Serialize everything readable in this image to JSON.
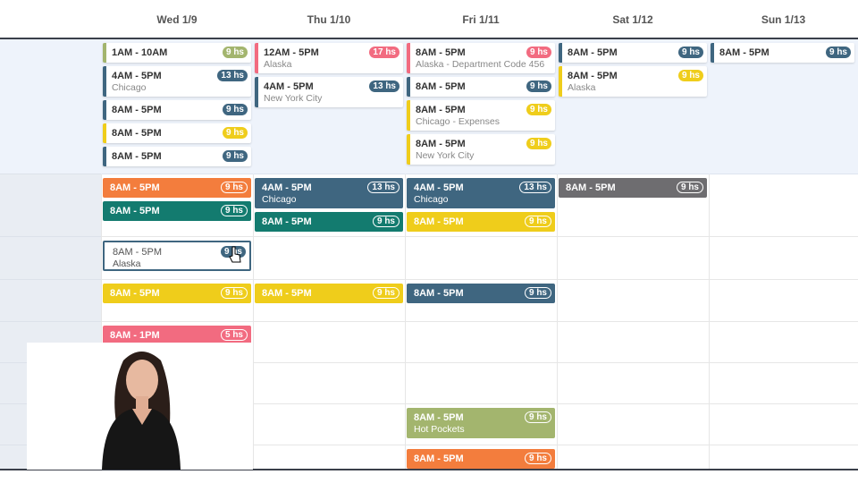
{
  "days": [
    "Wed 1/9",
    "Thu 1/10",
    "Fri 1/11",
    "Sat 1/12",
    "Sun 1/13"
  ],
  "rows": [
    {
      "cells": [
        {
          "shifts": [
            {
              "time": "1AM - 10AM",
              "hours": "9 hs",
              "color": "#a3b56e"
            },
            {
              "time": "4AM - 5PM",
              "hours": "13 hs",
              "location": "Chicago",
              "color": "#3f6680"
            },
            {
              "time": "8AM - 5PM",
              "hours": "9 hs",
              "color": "#3f6680"
            },
            {
              "time": "8AM - 5PM",
              "hours": "9 hs",
              "color": "#efcd1b"
            },
            {
              "time": "8AM - 5PM",
              "hours": "9 hs",
              "color": "#3f6680"
            }
          ]
        },
        {
          "shifts": [
            {
              "time": "12AM - 5PM",
              "hours": "17 hs",
              "location": "Alaska",
              "color": "#f26b80"
            },
            {
              "time": "4AM - 5PM",
              "hours": "13 hs",
              "location": "New York City",
              "color": "#3f6680"
            }
          ]
        },
        {
          "shifts": [
            {
              "time": "8AM - 5PM",
              "hours": "9 hs",
              "location": "Alaska - Department Code 456",
              "color": "#f26b80"
            },
            {
              "time": "8AM - 5PM",
              "hours": "9 hs",
              "color": "#3f6680"
            },
            {
              "time": "8AM - 5PM",
              "hours": "9 hs",
              "location": "Chicago - Expenses",
              "color": "#efcd1b"
            },
            {
              "time": "8AM - 5PM",
              "hours": "9 hs",
              "location": "New York City",
              "color": "#efcd1b"
            }
          ]
        },
        {
          "shifts": [
            {
              "time": "8AM - 5PM",
              "hours": "9 hs",
              "color": "#3f6680"
            },
            {
              "time": "8AM - 5PM",
              "hours": "9 hs",
              "location": "Alaska",
              "color": "#efcd1b"
            }
          ]
        },
        {
          "shifts": [
            {
              "time": "8AM - 5PM",
              "hours": "9 hs",
              "color": "#3f6680"
            }
          ]
        }
      ]
    },
    {
      "cells": [
        {
          "shifts": [
            {
              "time": "8AM - 5PM",
              "hours": "9 hs",
              "color": "#f37d3d"
            },
            {
              "time": "8AM - 5PM",
              "hours": "9 hs",
              "color": "#137b6f"
            }
          ]
        },
        {
          "shifts": [
            {
              "time": "4AM - 5PM",
              "hours": "13 hs",
              "location": "Chicago",
              "color": "#3f6680"
            },
            {
              "time": "8AM - 5PM",
              "hours": "9 hs",
              "color": "#137b6f"
            }
          ]
        },
        {
          "shifts": [
            {
              "time": "4AM - 5PM",
              "hours": "13 hs",
              "location": "Chicago",
              "color": "#3f6680"
            },
            {
              "time": "8AM - 5PM",
              "hours": "9 hs",
              "color": "#efcd1b"
            }
          ]
        },
        {
          "shifts": [
            {
              "time": "8AM - 5PM",
              "hours": "9 hs",
              "color": "#6e6d70"
            }
          ]
        },
        {
          "shifts": []
        }
      ]
    },
    {
      "cells": [
        {
          "shifts": [
            {
              "time": "8AM - 5PM",
              "hours": "9 hs",
              "location": "Alaska",
              "color": "#3f6680",
              "selected": true
            }
          ]
        },
        {
          "shifts": []
        },
        {
          "shifts": []
        },
        {
          "shifts": []
        },
        {
          "shifts": []
        }
      ]
    },
    {
      "cells": [
        {
          "shifts": [
            {
              "time": "8AM - 5PM",
              "hours": "9 hs",
              "color": "#efcd1b"
            }
          ]
        },
        {
          "shifts": [
            {
              "time": "8AM - 5PM",
              "hours": "9 hs",
              "color": "#efcd1b"
            }
          ]
        },
        {
          "shifts": [
            {
              "time": "8AM - 5PM",
              "hours": "9 hs",
              "color": "#3f6680"
            }
          ]
        },
        {
          "shifts": []
        },
        {
          "shifts": []
        }
      ]
    },
    {
      "cells": [
        {
          "shifts": [
            {
              "time": "8AM - 1PM",
              "hours": "5 hs",
              "color": "#f26b80"
            }
          ]
        },
        {
          "shifts": []
        },
        {
          "shifts": []
        },
        {
          "shifts": []
        },
        {
          "shifts": []
        }
      ]
    },
    {
      "cells": [
        {
          "shifts": []
        },
        {
          "shifts": []
        },
        {
          "shifts": []
        },
        {
          "shifts": []
        },
        {
          "shifts": []
        }
      ]
    },
    {
      "cells": [
        {
          "shifts": []
        },
        {
          "shifts": []
        },
        {
          "shifts": [
            {
              "time": "8AM - 5PM",
              "hours": "9 hs",
              "location": "Hot Pockets",
              "color": "#a3b56e"
            }
          ]
        },
        {
          "shifts": []
        },
        {
          "shifts": []
        }
      ]
    },
    {
      "cells": [
        {
          "shifts": []
        },
        {
          "shifts": []
        },
        {
          "shifts": [
            {
              "time": "8AM - 5PM",
              "hours": "9 hs",
              "color": "#f37d3d"
            }
          ]
        },
        {
          "shifts": []
        },
        {
          "shifts": []
        }
      ]
    }
  ]
}
